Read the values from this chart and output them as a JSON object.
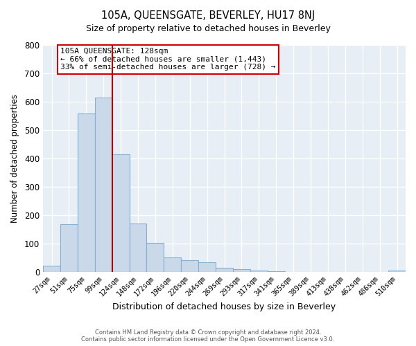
{
  "title": "105A, QUEENSGATE, BEVERLEY, HU17 8NJ",
  "subtitle": "Size of property relative to detached houses in Beverley",
  "xlabel": "Distribution of detached houses by size in Beverley",
  "ylabel": "Number of detached properties",
  "bar_labels": [
    "27sqm",
    "51sqm",
    "75sqm",
    "99sqm",
    "124sqm",
    "148sqm",
    "172sqm",
    "196sqm",
    "220sqm",
    "244sqm",
    "269sqm",
    "293sqm",
    "317sqm",
    "341sqm",
    "365sqm",
    "389sqm",
    "413sqm",
    "438sqm",
    "462sqm",
    "486sqm",
    "510sqm"
  ],
  "bar_values": [
    20,
    168,
    558,
    615,
    415,
    170,
    102,
    50,
    40,
    33,
    13,
    10,
    5,
    1,
    0,
    0,
    0,
    0,
    0,
    0,
    5
  ],
  "bar_color": "#c9d9ea",
  "bar_edge_color": "#89aece",
  "vline_color": "#bb0000",
  "annotation_title": "105A QUEENSGATE: 128sqm",
  "annotation_line1": "← 66% of detached houses are smaller (1,443)",
  "annotation_line2": "33% of semi-detached houses are larger (728) →",
  "annotation_box_color": "#ffffff",
  "annotation_box_edge": "#cc0000",
  "ylim": [
    0,
    800
  ],
  "yticks": [
    0,
    100,
    200,
    300,
    400,
    500,
    600,
    700,
    800
  ],
  "footer_line1": "Contains HM Land Registry data © Crown copyright and database right 2024.",
  "footer_line2": "Contains public sector information licensed under the Open Government Licence v3.0.",
  "bg_color": "#e8eef5"
}
